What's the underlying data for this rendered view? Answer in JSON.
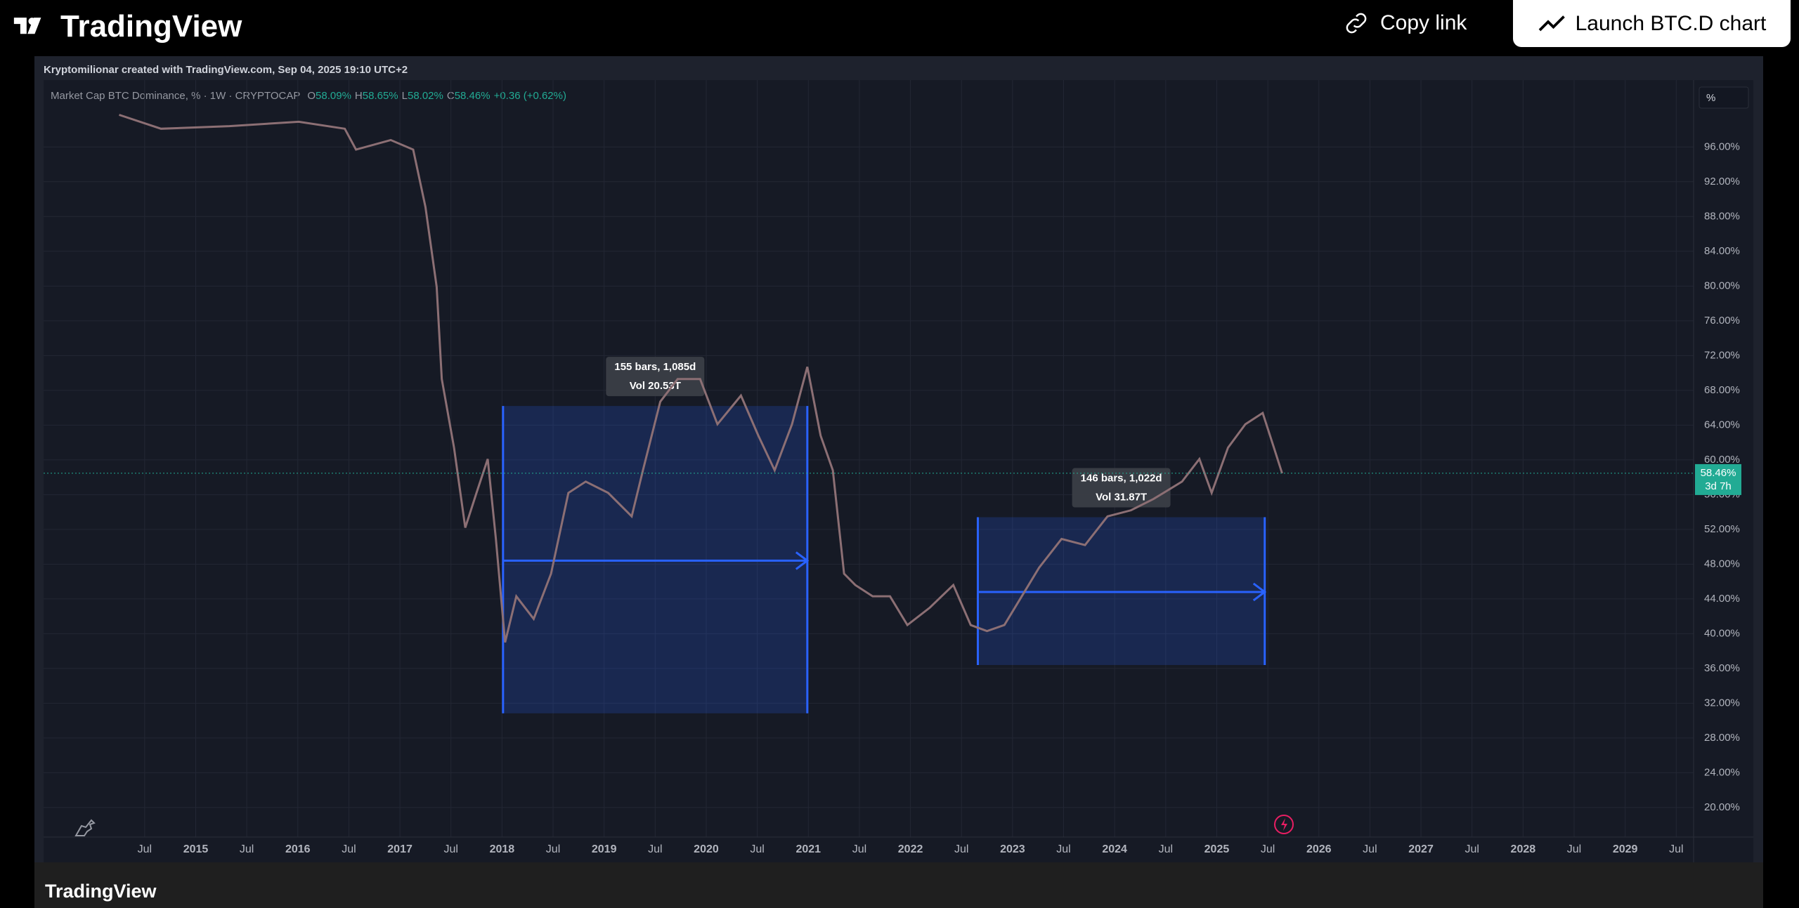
{
  "header": {
    "logo": "TradingView",
    "copy_link": "Copy link",
    "launch": "Launch BTC.D chart"
  },
  "chart_data": {
    "type": "line",
    "caption": "Kryptomilionar created with TradingView.com, Sep 04, 2025 19:10 UTC+2",
    "symbol": "Market Cap BTC Dominance, % · 1W · CRYPTOCAP",
    "ohlc": [
      {
        "key": "O",
        "value": "58.09%"
      },
      {
        "key": "H",
        "value": "58.65%"
      },
      {
        "key": "L",
        "value": "58.02%"
      },
      {
        "key": "C",
        "value": "58.46%"
      }
    ],
    "change": "+0.36 (+0.62%)",
    "scale_button": "%",
    "color": "#8c6f74",
    "x": [
      2014.25,
      2014.66,
      2015.33,
      2016.01,
      2016.46,
      2016.57,
      2016.91,
      2017.13,
      2017.25,
      2017.36,
      2017.41,
      2017.53,
      2017.64,
      2017.75,
      2017.86,
      2017.94,
      2018.03,
      2018.14,
      2018.31,
      2018.48,
      2018.65,
      2018.82,
      2019.04,
      2019.27,
      2019.38,
      2019.55,
      2019.72,
      2019.94,
      2020.11,
      2020.34,
      2020.51,
      2020.67,
      2020.84,
      2020.99,
      2021.12,
      2021.24,
      2021.35,
      2021.46,
      2021.63,
      2021.8,
      2021.97,
      2022.19,
      2022.42,
      2022.59,
      2022.75,
      2022.92,
      2023.09,
      2023.26,
      2023.48,
      2023.71,
      2023.93,
      2024.16,
      2024.38,
      2024.66,
      2024.83,
      2024.95,
      2025.11,
      2025.28,
      2025.45,
      2025.56,
      2025.64
    ],
    "values": [
      99.7,
      98.1,
      98.4,
      98.9,
      98.1,
      95.7,
      96.8,
      95.7,
      89.1,
      79.9,
      69.3,
      61.4,
      52.2,
      56.2,
      60.1,
      50.9,
      39.0,
      44.3,
      41.7,
      46.9,
      56.2,
      57.5,
      56.2,
      53.5,
      58.8,
      66.7,
      69.3,
      69.3,
      64.1,
      67.4,
      62.8,
      58.8,
      64.1,
      70.7,
      62.8,
      58.8,
      46.9,
      45.6,
      44.3,
      44.3,
      41.0,
      43.0,
      45.6,
      41.0,
      40.3,
      41.0,
      44.3,
      47.6,
      50.9,
      50.2,
      53.5,
      54.2,
      55.5,
      57.5,
      60.1,
      56.2,
      61.4,
      64.1,
      65.4,
      61.4,
      58.46
    ],
    "xlim": [
      2013.51,
      2029.67
    ],
    "ylim": [
      16.6,
      103.7
    ],
    "xticks": [
      {
        "value": 2014.5,
        "label": "Jul"
      },
      2015,
      {
        "value": 2015.5,
        "label": "Jul"
      },
      2016,
      {
        "value": 2016.5,
        "label": "Jul"
      },
      2017,
      {
        "value": 2017.5,
        "label": "Jul"
      },
      2018,
      {
        "value": 2018.5,
        "label": "Jul"
      },
      2019,
      {
        "value": 2019.5,
        "label": "Jul"
      },
      2020,
      {
        "value": 2020.5,
        "label": "Jul"
      },
      2021,
      {
        "value": 2021.5,
        "label": "Jul"
      },
      2022,
      {
        "value": 2022.5,
        "label": "Jul"
      },
      2023,
      {
        "value": 2023.5,
        "label": "Jul"
      },
      2024,
      {
        "value": 2024.5,
        "label": "Jul"
      },
      2025,
      {
        "value": 2025.5,
        "label": "Jul"
      },
      2026,
      {
        "value": 2026.5,
        "label": "Jul"
      },
      2027,
      {
        "value": 2027.5,
        "label": "Jul"
      },
      2028,
      {
        "value": 2028.5,
        "label": "Jul"
      },
      2029,
      {
        "value": 2029.5,
        "label": "Jul"
      }
    ],
    "yticks": [
      {
        "value": 20,
        "label": "20.00%"
      },
      {
        "value": 24,
        "label": "24.00%"
      },
      {
        "value": 28,
        "label": "28.00%"
      },
      {
        "value": 32,
        "label": "32.00%"
      },
      {
        "value": 36,
        "label": "36.00%"
      },
      {
        "value": 40,
        "label": "40.00%"
      },
      {
        "value": 44,
        "label": "44.00%"
      },
      {
        "value": 48,
        "label": "48.00%"
      },
      {
        "value": 52,
        "label": "52.00%"
      },
      {
        "value": 56,
        "label": "56.00%"
      },
      {
        "value": 60,
        "label": "60.00%"
      },
      {
        "value": 64,
        "label": "64.00%"
      },
      {
        "value": 68,
        "label": "68.00%"
      },
      {
        "value": 72,
        "label": "72.00%"
      },
      {
        "value": 76,
        "label": "76.00%"
      },
      {
        "value": 80,
        "label": "80.00%"
      },
      {
        "value": 84,
        "label": "84.00%"
      },
      {
        "value": 88,
        "label": "88.00%"
      },
      {
        "value": 92,
        "label": "92.00%"
      },
      {
        "value": 96,
        "label": "96.00%"
      }
    ],
    "grid": true,
    "last_value": 58.46,
    "last_label": "58.46%",
    "countdown": "3d 7h",
    "annotations": [
      {
        "x0": 2018.01,
        "x1": 2020.99,
        "y0": 30.84,
        "y1": 66.2,
        "arrow_y": 48.4,
        "lines": [
          "155 bars, 1,085d",
          "Vol 20.53T"
        ]
      },
      {
        "x0": 2022.66,
        "x1": 2025.47,
        "y0": 36.4,
        "y1": 53.4,
        "arrow_y": 44.8,
        "lines": [
          "146 bars, 1,022d",
          "Vol 31.87T"
        ]
      }
    ]
  },
  "footer": {
    "logo": "TradingView"
  }
}
